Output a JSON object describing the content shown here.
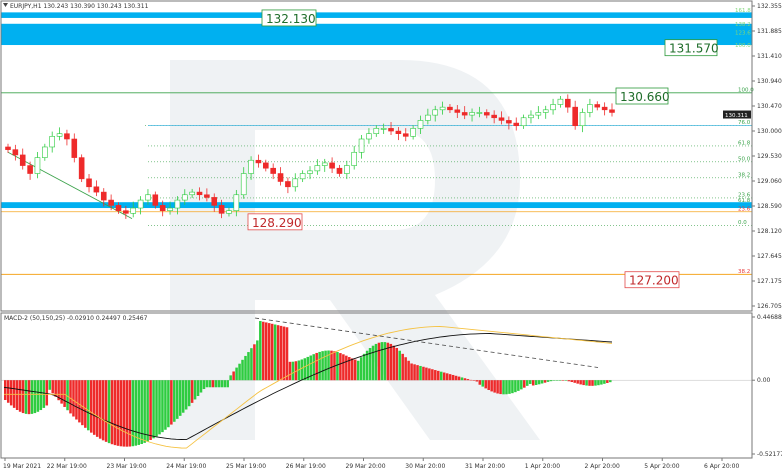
{
  "chart_data": [
    {
      "type": "candlestick",
      "header": "EURJPY,H1  130.243 130.390 130.243 130.311",
      "x_tick_labels": [
        "19 Mar 2021",
        "22 Mar 19:00",
        "23 Mar 19:00",
        "24 Mar 19:00",
        "25 Mar 19:00",
        "26 Mar 19:00",
        "29 Mar 20:00",
        "30 Mar 20:00",
        "31 Mar 20:00",
        "1 Apr 20:00",
        "2 Apr 20:00",
        "5 Apr 20:00",
        "6 Apr 20:00"
      ],
      "y_tick_labels": [
        "132.355",
        "131.885",
        "131.410",
        "130.940",
        "130.470",
        "130.000",
        "129.530",
        "129.060",
        "128.590",
        "128.120",
        "127.645",
        "127.175",
        "126.705"
      ],
      "ylim": [
        126.705,
        132.355
      ],
      "current_price": "130.311",
      "price_series": [
        129.65,
        129.55,
        129.35,
        129.2,
        129.5,
        129.7,
        129.9,
        129.95,
        129.85,
        129.5,
        129.1,
        128.95,
        128.85,
        128.7,
        128.6,
        128.5,
        128.45,
        128.55,
        128.7,
        128.8,
        128.6,
        128.5,
        128.55,
        128.7,
        128.8,
        128.85,
        128.8,
        128.75,
        128.6,
        128.45,
        128.5,
        128.8,
        129.2,
        129.45,
        129.4,
        129.3,
        129.2,
        129.05,
        128.95,
        129.1,
        129.2,
        129.25,
        129.35,
        129.4,
        129.3,
        129.2,
        129.35,
        129.6,
        129.85,
        129.95,
        130.05,
        130.05,
        130.0,
        129.95,
        129.9,
        130.05,
        130.2,
        130.3,
        130.4,
        130.45,
        130.4,
        130.35,
        130.3,
        130.35,
        130.35,
        130.3,
        130.25,
        130.2,
        130.15,
        130.1,
        130.25,
        130.3,
        130.35,
        130.4,
        130.5,
        130.6,
        130.45,
        130.1,
        130.35,
        130.5,
        130.45,
        130.4,
        130.35
      ],
      "levels": [
        {
          "label": "132.130",
          "price": 132.13,
          "box": "green"
        },
        {
          "label": "131.570",
          "price": 131.57,
          "box": "green"
        },
        {
          "label": "130.660",
          "price": 130.66,
          "box": "green"
        },
        {
          "label": "128.290",
          "price": 128.29,
          "box": "red"
        },
        {
          "label": "127.200",
          "price": 127.2,
          "box": "red"
        }
      ],
      "fib_upper": [
        {
          "label": "161.8",
          "price": 132.28
        },
        {
          "label": "138.2",
          "price": 132.02
        },
        {
          "label": "123.6",
          "price": 131.86
        },
        {
          "label": "100.0",
          "price": 131.62
        }
      ],
      "fib_main": [
        {
          "label": "100.0",
          "price": 130.72
        },
        {
          "label": "76.0",
          "price": 130.1
        },
        {
          "label": "61.8",
          "price": 129.72
        },
        {
          "label": "50.0",
          "price": 129.42
        },
        {
          "label": "38.2",
          "price": 129.12
        },
        {
          "label": "23.6",
          "price": 128.74
        },
        {
          "label": "0.0",
          "price": 128.22
        }
      ],
      "fib_lower": [
        {
          "label": "61.8",
          "price": 128.64
        },
        {
          "label": "23.6",
          "price": 128.48
        },
        {
          "label": "38.2",
          "price": 127.3
        }
      ]
    },
    {
      "type": "histogram",
      "header": "MACD-2 (50,150,25) -0.02910 0.24497 0.25467",
      "y_tick_labels": [
        "0.44688",
        "0.00",
        "-0.52177"
      ],
      "ylim": [
        -0.52177,
        0.44688
      ]
    }
  ],
  "colors": {
    "bull": "#2ecc40",
    "bear": "#ee2a2a",
    "level": "#1ea7d6",
    "fib": "#3aa24a",
    "red_fib": "#e83a3a",
    "orange": "#f5a623",
    "band": "#00b0f0"
  }
}
